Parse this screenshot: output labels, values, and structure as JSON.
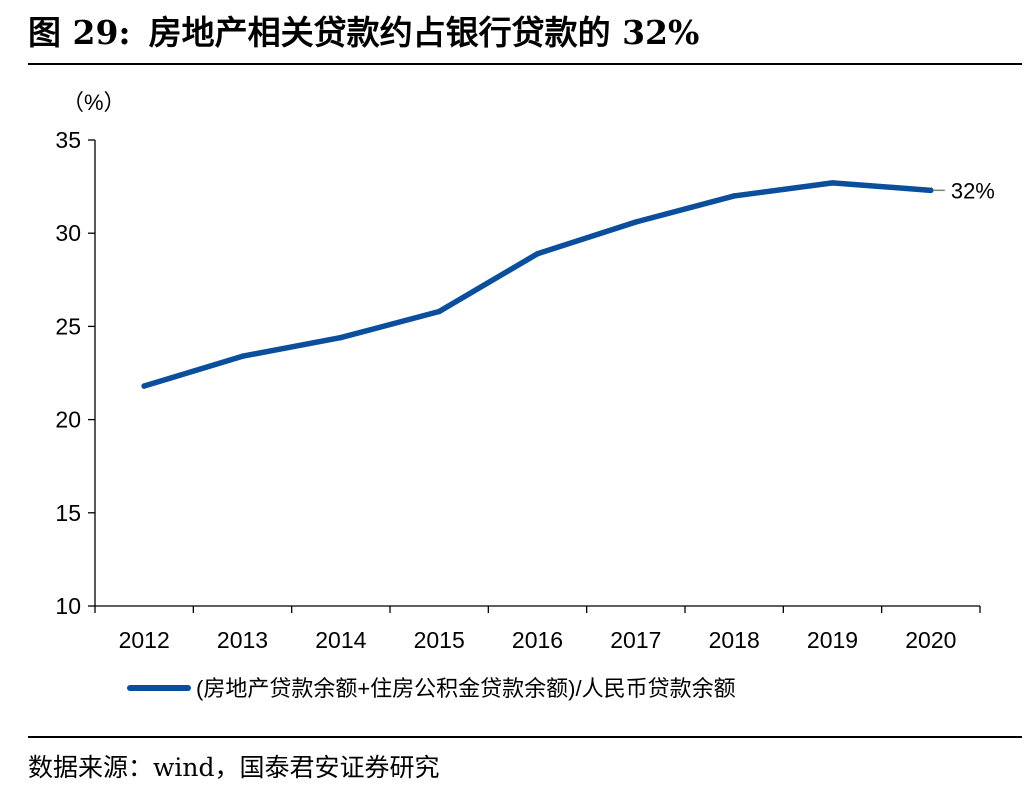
{
  "figure": {
    "label": "图 29:",
    "title": "房地产相关贷款约占银行贷款的 32%"
  },
  "source": "数据来源：wind，国泰君安证券研究",
  "chart_data": {
    "type": "line",
    "title": "",
    "ylabel": "（%）",
    "xlabel": "",
    "ylim": [
      10,
      35
    ],
    "yticks": [
      10,
      15,
      20,
      25,
      30,
      35
    ],
    "categories": [
      "2012",
      "2013",
      "2014",
      "2015",
      "2016",
      "2017",
      "2018",
      "2019",
      "2020"
    ],
    "series": [
      {
        "name": "(房地产贷款余额+住房公积金贷款余额)/人民币贷款余额",
        "color": "#0b4f9c",
        "values": [
          21.8,
          23.4,
          24.4,
          25.8,
          28.9,
          30.6,
          32.0,
          32.7,
          32.3
        ]
      }
    ],
    "annotations": [
      {
        "category": "2020",
        "value": 32.3,
        "text": "32%"
      }
    ],
    "legend": "bottom",
    "grid": false
  }
}
